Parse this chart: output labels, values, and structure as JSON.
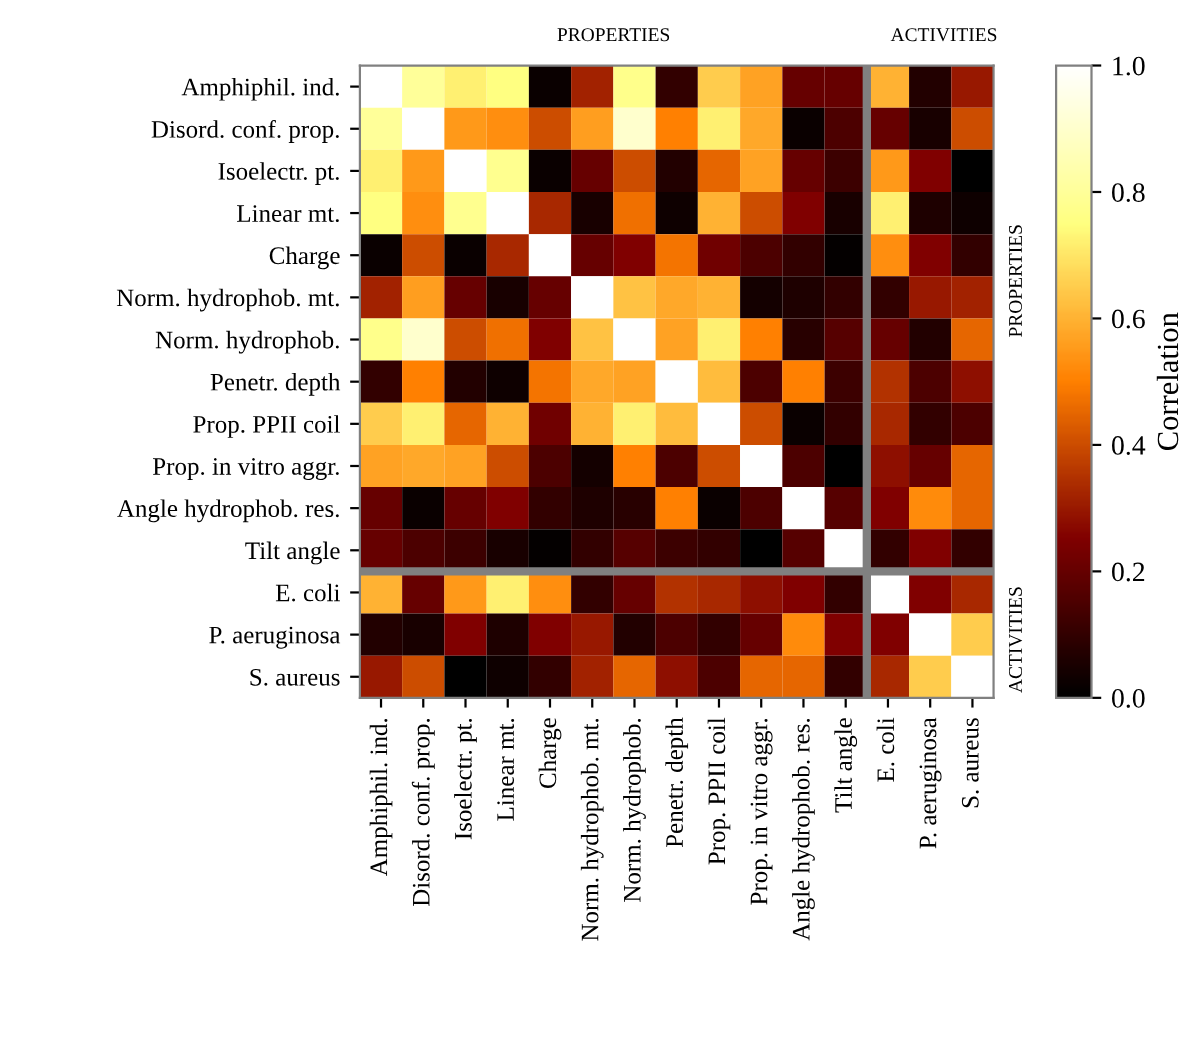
{
  "chart_data": {
    "type": "heatmap",
    "categories": [
      "Amphiphil. ind.",
      "Disord. conf. prop.",
      "Isoelectr. pt.",
      "Linear mt.",
      "Charge",
      "Norm. hydrophob. mt.",
      "Norm. hydrophob.",
      "Penetr. depth",
      "Prop. PPII coil",
      "Prop. in vitro aggr.",
      "Angle hydrophob. res.",
      "Tilt angle",
      "E. coli",
      "P. aeruginosa",
      "S. aureus"
    ],
    "y_categories": [
      "Amphiphil. ind.",
      "Disord. conf. prop.",
      "Isoelectr. pt.",
      "Linear mt.",
      "Charge",
      "Norm. hydrophob. mt.",
      "Norm. hydrophob.",
      "Penetr. depth",
      "Prop. PPII coil",
      "Prop. in vitro aggr.",
      "Angle hydrophob. res.",
      "Tilt angle",
      "E. coli",
      "P. aeruginosa",
      "S. aureus"
    ],
    "cells": [
      [
        1,
        0.8,
        0.72,
        0.75,
        0.02,
        0.32,
        0.77,
        0.1,
        0.65,
        0.57,
        0.2,
        0.2,
        0.6,
        0.07,
        0.3
      ],
      [
        0.8,
        1,
        0.55,
        0.53,
        0.4,
        0.56,
        0.9,
        0.5,
        0.72,
        0.58,
        0.02,
        0.15,
        0.2,
        0.05,
        0.4
      ],
      [
        0.72,
        0.55,
        1,
        0.78,
        0.02,
        0.2,
        0.4,
        0.07,
        0.45,
        0.57,
        0.2,
        0.12,
        0.55,
        0.25,
        0.0
      ],
      [
        0.75,
        0.53,
        0.78,
        1,
        0.33,
        0.05,
        0.47,
        0.03,
        0.6,
        0.4,
        0.25,
        0.05,
        0.72,
        0.06,
        0.03
      ],
      [
        0.02,
        0.4,
        0.02,
        0.33,
        1,
        0.2,
        0.25,
        0.48,
        0.22,
        0.15,
        0.1,
        0.01,
        0.53,
        0.25,
        0.1
      ],
      [
        0.32,
        0.56,
        0.2,
        0.05,
        0.2,
        1,
        0.63,
        0.58,
        0.6,
        0.04,
        0.06,
        0.1,
        0.1,
        0.3,
        0.32
      ],
      [
        0.77,
        0.9,
        0.4,
        0.47,
        0.25,
        0.63,
        1,
        0.57,
        0.72,
        0.5,
        0.08,
        0.17,
        0.2,
        0.07,
        0.45
      ],
      [
        0.1,
        0.5,
        0.07,
        0.03,
        0.48,
        0.58,
        0.57,
        1,
        0.62,
        0.15,
        0.5,
        0.12,
        0.35,
        0.15,
        0.28
      ],
      [
        0.65,
        0.72,
        0.45,
        0.6,
        0.22,
        0.6,
        0.72,
        0.62,
        1,
        0.4,
        0.02,
        0.1,
        0.33,
        0.1,
        0.15
      ],
      [
        0.57,
        0.58,
        0.57,
        0.4,
        0.15,
        0.04,
        0.5,
        0.15,
        0.4,
        1,
        0.15,
        0.0,
        0.28,
        0.2,
        0.45
      ],
      [
        0.2,
        0.02,
        0.2,
        0.25,
        0.1,
        0.06,
        0.08,
        0.5,
        0.02,
        0.15,
        1,
        0.17,
        0.25,
        0.52,
        0.45
      ],
      [
        0.2,
        0.15,
        0.12,
        0.05,
        0.01,
        0.1,
        0.17,
        0.12,
        0.1,
        0.0,
        0.17,
        1,
        0.1,
        0.25,
        0.1
      ],
      [
        0.6,
        0.2,
        0.55,
        0.72,
        0.53,
        0.1,
        0.2,
        0.35,
        0.33,
        0.28,
        0.25,
        0.1,
        1,
        0.25,
        0.33
      ],
      [
        0.07,
        0.05,
        0.25,
        0.06,
        0.25,
        0.3,
        0.07,
        0.15,
        0.1,
        0.2,
        0.52,
        0.25,
        0.25,
        1,
        0.65
      ],
      [
        0.3,
        0.4,
        0.0,
        0.03,
        0.1,
        0.32,
        0.45,
        0.28,
        0.15,
        0.45,
        0.45,
        0.1,
        0.33,
        0.65,
        1
      ]
    ],
    "clim": [
      0,
      1
    ],
    "cticks": [
      {
        "value": 0,
        "label": "0.0"
      },
      {
        "value": 0.2,
        "label": "0.2"
      },
      {
        "value": 0.4,
        "label": "0.4"
      },
      {
        "value": 0.6,
        "label": "0.6"
      },
      {
        "value": 0.8,
        "label": "0.8"
      },
      {
        "value": 1,
        "label": "1.0"
      }
    ],
    "clabel": "Correlation",
    "annotations": [
      "PROPERTIES",
      "ACTIVITIES",
      "PROPERTIES",
      "ACTIVITIES"
    ]
  }
}
